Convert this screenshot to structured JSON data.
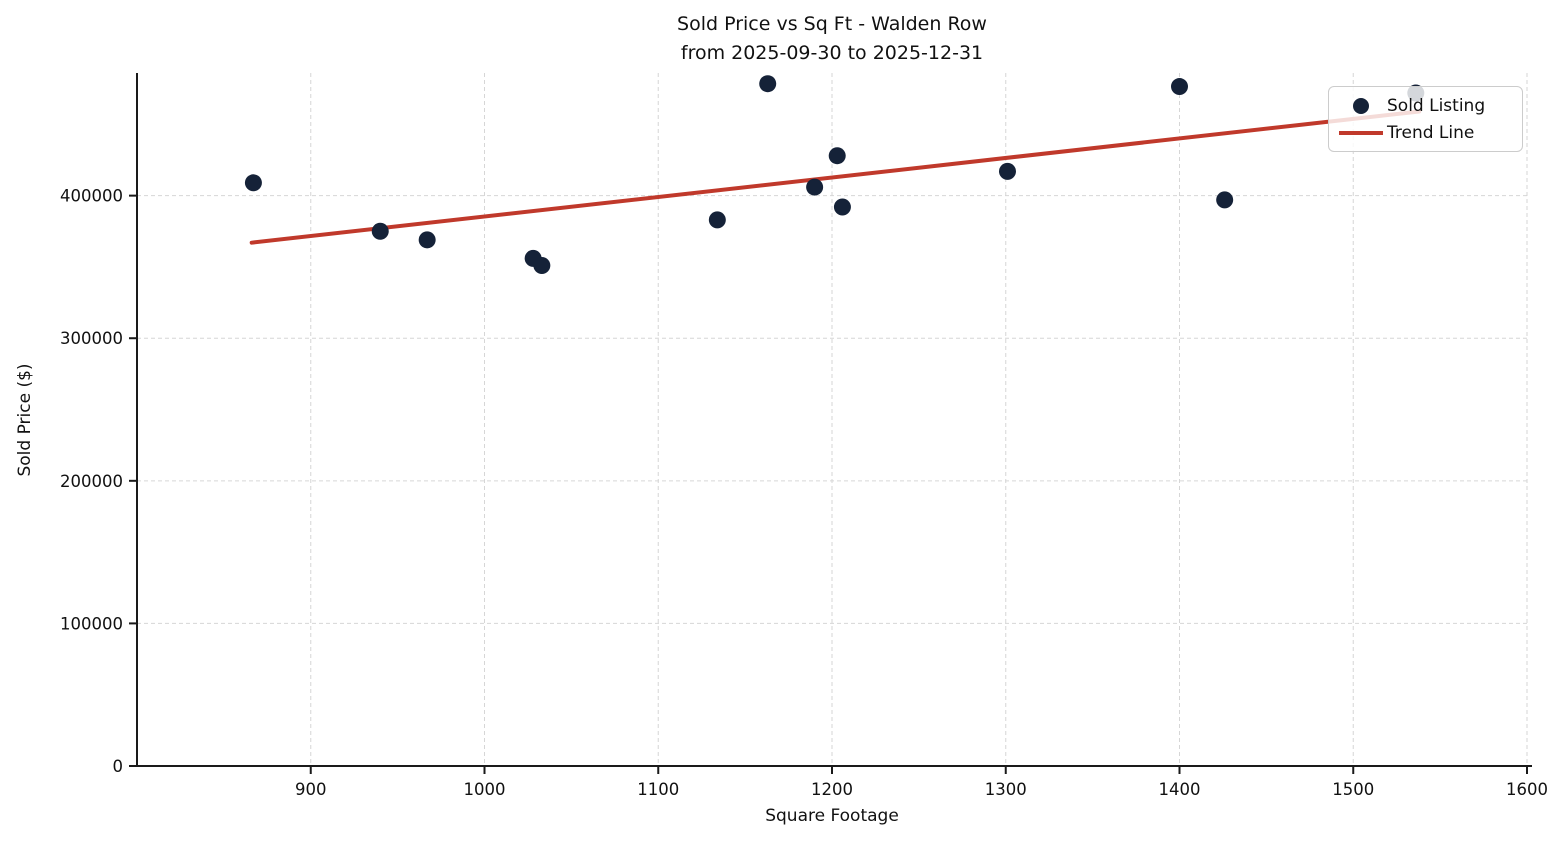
{
  "chart": {
    "title_line1": "Sold Price vs Sq Ft - Walden Row",
    "title_line2": "from 2025-09-30 to 2025-12-31",
    "xlabel": "Square Footage",
    "ylabel": "Sold Price ($)",
    "legend": {
      "sold_label": "Sold Listing",
      "trend_label": "Trend Line"
    }
  },
  "chart_data": {
    "type": "scatter",
    "title": "Sold Price vs Sq Ft - Walden Row from 2025-09-30 to 2025-12-31",
    "xlabel": "Square Footage",
    "ylabel": "Sold Price ($)",
    "xlim": [
      800,
      1600
    ],
    "ylim": [
      0,
      486000
    ],
    "x_ticks": [
      900,
      1000,
      1100,
      1200,
      1300,
      1400,
      1500,
      1600
    ],
    "y_ticks": [
      0,
      100000,
      200000,
      300000,
      400000
    ],
    "grid": true,
    "legend_position": "upper right",
    "series": [
      {
        "name": "Sold Listing",
        "type": "scatter",
        "points": [
          [
            867,
            409000
          ],
          [
            940,
            375000
          ],
          [
            967,
            369000
          ],
          [
            1028,
            356000
          ],
          [
            1033,
            351000
          ],
          [
            1134,
            383000
          ],
          [
            1163,
            478500
          ],
          [
            1190,
            406000
          ],
          [
            1203,
            428000
          ],
          [
            1206,
            392000
          ],
          [
            1301,
            417000
          ],
          [
            1400,
            476500
          ],
          [
            1426,
            397000
          ],
          [
            1536,
            472000
          ]
        ]
      },
      {
        "name": "Trend Line",
        "type": "line",
        "points": [
          [
            866,
            367000
          ],
          [
            1538,
            459000
          ]
        ]
      }
    ],
    "colors": {
      "point": "#152238",
      "trend": "#c0392b",
      "grid": "#d6d6d6",
      "axis": "#1a1a1a",
      "text": "#111111"
    }
  }
}
